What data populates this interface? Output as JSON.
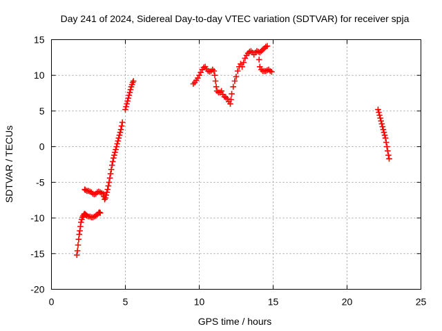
{
  "chart_data": {
    "type": "scatter",
    "title": "Day 241 of 2024, Sidereal Day-to-day VTEC variation (SDTVAR) for receiver spja",
    "xlabel": "GPS time / hours",
    "ylabel": "SDTVAR / TECUs",
    "xlim": [
      0,
      25
    ],
    "ylim": [
      -20,
      15
    ],
    "xticks": [
      0,
      5,
      10,
      15,
      20,
      25
    ],
    "yticks": [
      -20,
      -15,
      -10,
      -5,
      0,
      5,
      10,
      15
    ],
    "grid": true,
    "marker": "plus",
    "colors": {
      "series": "#ff0000",
      "axes": "#000000",
      "grid": "#a0a0a0"
    },
    "series": [
      {
        "points": [
          [
            1.72,
            -15.2
          ],
          [
            1.76,
            -14.6
          ],
          [
            1.8,
            -13.8
          ],
          [
            1.84,
            -13.0
          ],
          [
            1.88,
            -12.3
          ],
          [
            1.92,
            -11.8
          ],
          [
            1.96,
            -11.2
          ],
          [
            2.0,
            -10.6
          ],
          [
            2.05,
            -10.2
          ],
          [
            2.1,
            -9.9
          ],
          [
            2.15,
            -9.7
          ],
          [
            2.2,
            -9.5
          ],
          [
            2.25,
            -9.4
          ],
          [
            2.3,
            -9.5
          ],
          [
            2.35,
            -9.6
          ],
          [
            2.4,
            -9.7
          ],
          [
            2.5,
            -9.8
          ],
          [
            2.6,
            -9.8
          ],
          [
            2.7,
            -9.9
          ],
          [
            2.8,
            -9.9
          ],
          [
            2.9,
            -9.8
          ],
          [
            3.0,
            -9.7
          ],
          [
            3.1,
            -9.5
          ],
          [
            3.2,
            -9.3
          ],
          [
            3.25,
            -9.2
          ],
          [
            3.3,
            -9.3
          ],
          [
            2.25,
            -6.0
          ],
          [
            2.3,
            -6.1
          ],
          [
            2.4,
            -6.2
          ],
          [
            2.5,
            -6.2
          ],
          [
            2.6,
            -6.3
          ],
          [
            2.7,
            -6.4
          ],
          [
            2.8,
            -6.6
          ],
          [
            2.9,
            -6.7
          ],
          [
            3.0,
            -6.6
          ],
          [
            3.1,
            -6.4
          ],
          [
            3.2,
            -6.3
          ],
          [
            3.3,
            -6.4
          ],
          [
            3.4,
            -6.5
          ],
          [
            3.5,
            -6.6
          ],
          [
            3.55,
            -7.0
          ],
          [
            3.6,
            -7.4
          ],
          [
            3.65,
            -7.2
          ],
          [
            3.7,
            -6.8
          ],
          [
            3.75,
            -6.4
          ],
          [
            3.8,
            -6.0
          ],
          [
            3.85,
            -5.5
          ],
          [
            3.9,
            -5.0
          ],
          [
            3.95,
            -4.4
          ],
          [
            4.0,
            -3.8
          ],
          [
            4.05,
            -3.2
          ],
          [
            4.1,
            -2.6
          ],
          [
            4.15,
            -2.1
          ],
          [
            4.2,
            -1.6
          ],
          [
            4.25,
            -1.2
          ],
          [
            4.3,
            -0.8
          ],
          [
            4.35,
            -0.4
          ],
          [
            4.4,
            0.0
          ],
          [
            4.45,
            0.4
          ],
          [
            4.5,
            0.8
          ],
          [
            4.55,
            1.2
          ],
          [
            4.6,
            1.6
          ],
          [
            4.65,
            2.0
          ],
          [
            4.7,
            2.4
          ],
          [
            4.75,
            2.9
          ],
          [
            4.8,
            3.4
          ],
          [
            5.0,
            5.2
          ],
          [
            5.05,
            5.6
          ],
          [
            5.1,
            6.0
          ],
          [
            5.15,
            6.4
          ],
          [
            5.2,
            6.8
          ],
          [
            5.25,
            7.2
          ],
          [
            5.3,
            7.6
          ],
          [
            5.35,
            8.0
          ],
          [
            5.4,
            8.4
          ],
          [
            5.45,
            8.7
          ],
          [
            5.5,
            9.0
          ],
          [
            5.55,
            9.2
          ],
          [
            9.6,
            8.8
          ],
          [
            9.7,
            9.0
          ],
          [
            9.8,
            9.3
          ],
          [
            9.9,
            9.6
          ],
          [
            10.0,
            10.0
          ],
          [
            10.1,
            10.4
          ],
          [
            10.2,
            10.8
          ],
          [
            10.3,
            11.1
          ],
          [
            10.4,
            11.2
          ],
          [
            10.5,
            10.9
          ],
          [
            10.6,
            10.6
          ],
          [
            10.7,
            10.5
          ],
          [
            10.8,
            10.6
          ],
          [
            10.9,
            10.8
          ],
          [
            11.0,
            10.6
          ],
          [
            11.05,
            10.0
          ],
          [
            11.1,
            9.2
          ],
          [
            11.15,
            8.4
          ],
          [
            11.2,
            7.8
          ],
          [
            11.3,
            7.6
          ],
          [
            11.4,
            7.6
          ],
          [
            11.5,
            7.8
          ],
          [
            11.6,
            7.3
          ],
          [
            11.7,
            7.0
          ],
          [
            11.8,
            6.9
          ],
          [
            11.9,
            6.7
          ],
          [
            12.0,
            6.3
          ],
          [
            12.1,
            6.0
          ],
          [
            12.15,
            6.6
          ],
          [
            12.2,
            7.4
          ],
          [
            12.3,
            8.4
          ],
          [
            12.4,
            9.2
          ],
          [
            12.5,
            9.8
          ],
          [
            12.6,
            10.6
          ],
          [
            12.7,
            11.2
          ],
          [
            12.8,
            11.6
          ],
          [
            12.9,
            11.2
          ],
          [
            13.0,
            11.8
          ],
          [
            13.1,
            12.4
          ],
          [
            13.2,
            12.8
          ],
          [
            13.3,
            13.1
          ],
          [
            13.4,
            13.3
          ],
          [
            13.5,
            13.4
          ],
          [
            13.6,
            13.2
          ],
          [
            13.7,
            12.9
          ],
          [
            13.8,
            13.2
          ],
          [
            13.9,
            13.4
          ],
          [
            14.0,
            13.3
          ],
          [
            14.05,
            12.2
          ],
          [
            14.1,
            11.2
          ],
          [
            14.2,
            10.8
          ],
          [
            14.3,
            10.6
          ],
          [
            14.4,
            10.6
          ],
          [
            14.5,
            10.6
          ],
          [
            14.6,
            10.7
          ],
          [
            14.7,
            10.8
          ],
          [
            14.8,
            10.6
          ],
          [
            14.9,
            10.5
          ],
          [
            14.1,
            13.2
          ],
          [
            14.2,
            13.4
          ],
          [
            14.3,
            13.6
          ],
          [
            14.4,
            13.8
          ],
          [
            14.5,
            14.0
          ],
          [
            14.6,
            14.1
          ],
          [
            22.1,
            5.2
          ],
          [
            22.15,
            4.8
          ],
          [
            22.2,
            4.4
          ],
          [
            22.25,
            4.0
          ],
          [
            22.3,
            3.6
          ],
          [
            22.35,
            3.2
          ],
          [
            22.4,
            2.8
          ],
          [
            22.45,
            2.4
          ],
          [
            22.5,
            2.0
          ],
          [
            22.55,
            1.6
          ],
          [
            22.6,
            1.2
          ],
          [
            22.65,
            0.6
          ],
          [
            22.7,
            0.0
          ],
          [
            22.75,
            -0.6
          ],
          [
            22.8,
            -1.2
          ],
          [
            22.85,
            -1.7
          ]
        ]
      }
    ]
  }
}
